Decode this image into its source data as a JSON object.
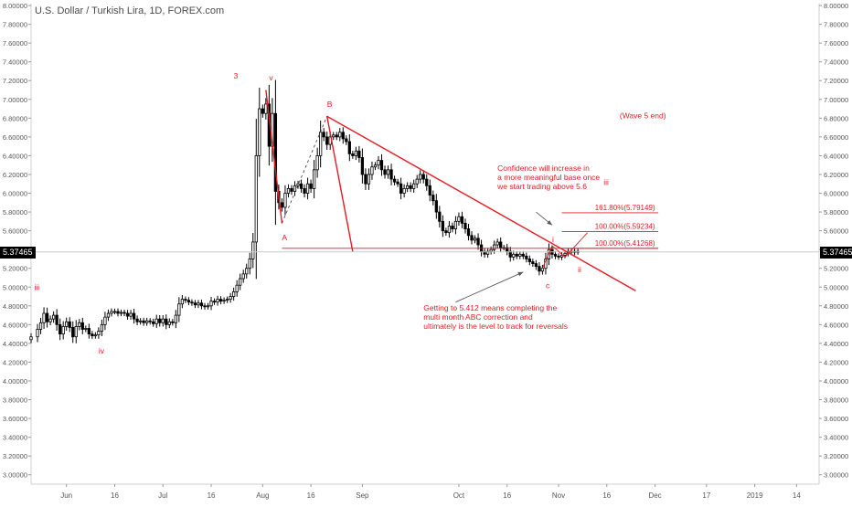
{
  "title": "U.S. Dollar / Turkish Lira, 1D, FOREX.com",
  "colors": {
    "annotation": "#e31b23",
    "candle_up": "#ffffff",
    "candle_down": "#000000",
    "wick": "#000000",
    "grid": "#e6e6e6",
    "axis_text": "#555555",
    "price_tag_bg": "#000000"
  },
  "chart_data": {
    "type": "candlestick",
    "title": "U.S. Dollar / Turkish Lira, 1D, FOREX.com",
    "ylim": [
      2.9,
      8.02
    ],
    "y_ticks": [
      "3.00000",
      "3.20000",
      "3.40000",
      "3.60000",
      "3.80000",
      "4.00000",
      "4.20000",
      "4.40000",
      "4.60000",
      "4.80000",
      "5.00000",
      "5.20000",
      "5.40000",
      "5.60000",
      "5.80000",
      "6.00000",
      "6.20000",
      "6.40000",
      "6.60000",
      "6.80000",
      "7.00000",
      "7.20000",
      "7.40000",
      "7.60000",
      "7.80000",
      "8.00000"
    ],
    "x_ticks": [
      {
        "label": "Jun",
        "day": 1
      },
      {
        "label": "16",
        "day": 16
      },
      {
        "label": "Jul",
        "day": 31
      },
      {
        "label": "16",
        "day": 46
      },
      {
        "label": "Aug",
        "day": 62
      },
      {
        "label": "16",
        "day": 77
      },
      {
        "label": "Sep",
        "day": 93
      },
      {
        "label": "Oct",
        "day": 123
      },
      {
        "label": "16",
        "day": 138
      },
      {
        "label": "Nov",
        "day": 154
      },
      {
        "label": "16",
        "day": 169
      },
      {
        "label": "Dec",
        "day": 184
      },
      {
        "label": "17",
        "day": 200
      },
      {
        "label": "2019",
        "day": 215
      },
      {
        "label": "14",
        "day": 228
      }
    ],
    "x_range_days": [
      -10,
      235
    ],
    "last_price": "5.37465",
    "last_price_value": 5.37465,
    "closes": [
      {
        "d": -10,
        "c": 4.47
      },
      {
        "d": -8,
        "c": 4.55
      },
      {
        "d": -7,
        "c": 4.62
      },
      {
        "d": -6,
        "c": 4.72
      },
      {
        "d": -5,
        "c": 4.63
      },
      {
        "d": -4,
        "c": 4.66
      },
      {
        "d": -3,
        "c": 4.7
      },
      {
        "d": -2,
        "c": 4.6
      },
      {
        "d": -1,
        "c": 4.5
      },
      {
        "d": 0,
        "c": 4.58
      },
      {
        "d": 1,
        "c": 4.63
      },
      {
        "d": 2,
        "c": 4.57
      },
      {
        "d": 3,
        "c": 4.47
      },
      {
        "d": 4,
        "c": 4.58
      },
      {
        "d": 5,
        "c": 4.62
      },
      {
        "d": 6,
        "c": 4.55
      },
      {
        "d": 7,
        "c": 4.56
      },
      {
        "d": 8,
        "c": 4.5
      },
      {
        "d": 9,
        "c": 4.48
      },
      {
        "d": 10,
        "c": 4.49
      },
      {
        "d": 11,
        "c": 4.53
      },
      {
        "d": 12,
        "c": 4.6
      },
      {
        "d": 13,
        "c": 4.68
      },
      {
        "d": 14,
        "c": 4.72
      },
      {
        "d": 15,
        "c": 4.74
      },
      {
        "d": 16,
        "c": 4.74
      },
      {
        "d": 17,
        "c": 4.72
      },
      {
        "d": 18,
        "c": 4.73
      },
      {
        "d": 19,
        "c": 4.72
      },
      {
        "d": 20,
        "c": 4.69
      },
      {
        "d": 21,
        "c": 4.72
      },
      {
        "d": 22,
        "c": 4.66
      },
      {
        "d": 23,
        "c": 4.63
      },
      {
        "d": 24,
        "c": 4.64
      },
      {
        "d": 25,
        "c": 4.62
      },
      {
        "d": 26,
        "c": 4.64
      },
      {
        "d": 27,
        "c": 4.63
      },
      {
        "d": 28,
        "c": 4.61
      },
      {
        "d": 29,
        "c": 4.66
      },
      {
        "d": 30,
        "c": 4.62
      },
      {
        "d": 31,
        "c": 4.66
      },
      {
        "d": 32,
        "c": 4.6
      },
      {
        "d": 33,
        "c": 4.63
      },
      {
        "d": 34,
        "c": 4.62
      },
      {
        "d": 35,
        "c": 4.7
      },
      {
        "d": 36,
        "c": 4.82
      },
      {
        "d": 37,
        "c": 4.87
      },
      {
        "d": 38,
        "c": 4.86
      },
      {
        "d": 39,
        "c": 4.84
      },
      {
        "d": 40,
        "c": 4.83
      },
      {
        "d": 41,
        "c": 4.81
      },
      {
        "d": 42,
        "c": 4.83
      },
      {
        "d": 43,
        "c": 4.8
      },
      {
        "d": 44,
        "c": 4.79
      },
      {
        "d": 45,
        "c": 4.8
      },
      {
        "d": 46,
        "c": 4.85
      },
      {
        "d": 47,
        "c": 4.84
      },
      {
        "d": 48,
        "c": 4.87
      },
      {
        "d": 49,
        "c": 4.85
      },
      {
        "d": 50,
        "c": 4.86
      },
      {
        "d": 51,
        "c": 4.87
      },
      {
        "d": 52,
        "c": 4.9
      },
      {
        "d": 53,
        "c": 4.95
      },
      {
        "d": 54,
        "c": 5.02
      },
      {
        "d": 55,
        "c": 5.09
      },
      {
        "d": 56,
        "c": 5.14
      },
      {
        "d": 57,
        "c": 5.2
      },
      {
        "d": 58,
        "c": 5.3
      },
      {
        "d": 59,
        "c": 5.48
      },
      {
        "d": 60,
        "c": 6.4
      },
      {
        "d": 61,
        "c": 6.9
      },
      {
        "d": 62,
        "c": 6.85
      },
      {
        "d": 63,
        "c": 6.95
      },
      {
        "d": 64,
        "c": 6.5
      },
      {
        "d": 65,
        "c": 6.85
      },
      {
        "d": 66,
        "c": 6.02
      },
      {
        "d": 67,
        "c": 5.9
      },
      {
        "d": 68,
        "c": 5.85
      },
      {
        "d": 69,
        "c": 6.0
      },
      {
        "d": 70,
        "c": 6.05
      },
      {
        "d": 71,
        "c": 6.02
      },
      {
        "d": 72,
        "c": 6.08
      },
      {
        "d": 73,
        "c": 6.1
      },
      {
        "d": 74,
        "c": 6.05
      },
      {
        "d": 75,
        "c": 6.0
      },
      {
        "d": 76,
        "c": 6.1
      },
      {
        "d": 77,
        "c": 6.05
      },
      {
        "d": 78,
        "c": 6.25
      },
      {
        "d": 79,
        "c": 6.4
      },
      {
        "d": 80,
        "c": 6.65
      },
      {
        "d": 81,
        "c": 6.6
      },
      {
        "d": 82,
        "c": 6.52
      },
      {
        "d": 83,
        "c": 6.6
      },
      {
        "d": 84,
        "c": 6.62
      },
      {
        "d": 85,
        "c": 6.6
      },
      {
        "d": 86,
        "c": 6.65
      },
      {
        "d": 87,
        "c": 6.58
      },
      {
        "d": 88,
        "c": 6.55
      },
      {
        "d": 89,
        "c": 6.42
      },
      {
        "d": 90,
        "c": 6.4
      },
      {
        "d": 91,
        "c": 6.45
      },
      {
        "d": 92,
        "c": 6.38
      },
      {
        "d": 93,
        "c": 6.2
      },
      {
        "d": 94,
        "c": 6.1
      },
      {
        "d": 95,
        "c": 6.2
      },
      {
        "d": 96,
        "c": 6.28
      },
      {
        "d": 97,
        "c": 6.3
      },
      {
        "d": 98,
        "c": 6.35
      },
      {
        "d": 99,
        "c": 6.25
      },
      {
        "d": 100,
        "c": 6.2
      },
      {
        "d": 101,
        "c": 6.25
      },
      {
        "d": 102,
        "c": 6.15
      },
      {
        "d": 103,
        "c": 6.12
      },
      {
        "d": 104,
        "c": 6.1
      },
      {
        "d": 105,
        "c": 6.0
      },
      {
        "d": 106,
        "c": 6.05
      },
      {
        "d": 107,
        "c": 6.08
      },
      {
        "d": 108,
        "c": 6.05
      },
      {
        "d": 109,
        "c": 6.1
      },
      {
        "d": 110,
        "c": 6.15
      },
      {
        "d": 111,
        "c": 6.2
      },
      {
        "d": 112,
        "c": 6.15
      },
      {
        "d": 113,
        "c": 6.08
      },
      {
        "d": 114,
        "c": 5.98
      },
      {
        "d": 115,
        "c": 5.92
      },
      {
        "d": 116,
        "c": 5.8
      },
      {
        "d": 117,
        "c": 5.7
      },
      {
        "d": 118,
        "c": 5.6
      },
      {
        "d": 119,
        "c": 5.58
      },
      {
        "d": 120,
        "c": 5.65
      },
      {
        "d": 121,
        "c": 5.62
      },
      {
        "d": 122,
        "c": 5.7
      },
      {
        "d": 123,
        "c": 5.75
      },
      {
        "d": 124,
        "c": 5.68
      },
      {
        "d": 125,
        "c": 5.62
      },
      {
        "d": 126,
        "c": 5.55
      },
      {
        "d": 127,
        "c": 5.5
      },
      {
        "d": 128,
        "c": 5.52
      },
      {
        "d": 129,
        "c": 5.45
      },
      {
        "d": 130,
        "c": 5.38
      },
      {
        "d": 131,
        "c": 5.35
      },
      {
        "d": 132,
        "c": 5.38
      },
      {
        "d": 133,
        "c": 5.4
      },
      {
        "d": 134,
        "c": 5.45
      },
      {
        "d": 135,
        "c": 5.48
      },
      {
        "d": 136,
        "c": 5.42
      },
      {
        "d": 137,
        "c": 5.42
      },
      {
        "d": 138,
        "c": 5.38
      },
      {
        "d": 139,
        "c": 5.32
      },
      {
        "d": 140,
        "c": 5.35
      },
      {
        "d": 141,
        "c": 5.33
      },
      {
        "d": 142,
        "c": 5.35
      },
      {
        "d": 143,
        "c": 5.33
      },
      {
        "d": 144,
        "c": 5.3
      },
      {
        "d": 145,
        "c": 5.27
      },
      {
        "d": 146,
        "c": 5.25
      },
      {
        "d": 147,
        "c": 5.22
      },
      {
        "d": 148,
        "c": 5.17
      },
      {
        "d": 149,
        "c": 5.2
      },
      {
        "d": 150,
        "c": 5.3
      },
      {
        "d": 151,
        "c": 5.4
      },
      {
        "d": 152,
        "c": 5.35
      },
      {
        "d": 153,
        "c": 5.33
      },
      {
        "d": 154,
        "c": 5.32
      },
      {
        "d": 155,
        "c": 5.34
      },
      {
        "d": 156,
        "c": 5.36
      },
      {
        "d": 157,
        "c": 5.38
      },
      {
        "d": 158,
        "c": 5.37
      },
      {
        "d": 159,
        "c": 5.38
      },
      {
        "d": 160,
        "c": 5.37465
      }
    ],
    "series_labels": {
      "wave_labels": [
        {
          "text": "iii",
          "d": -9,
          "v": 4.97
        },
        {
          "text": "iv",
          "d": 11,
          "v": 4.29
        },
        {
          "text": "3",
          "d": 53,
          "v": 7.22
        },
        {
          "text": "v",
          "d": 64,
          "v": 7.2
        },
        {
          "text": "A",
          "d": 68,
          "v": 5.5
        },
        {
          "text": "B",
          "d": 82,
          "v": 6.92
        },
        {
          "text": "i",
          "d": 152,
          "v": 5.48
        },
        {
          "text": "c",
          "d": 150,
          "v": 4.99
        },
        {
          "text": "ii",
          "d": 160,
          "v": 5.16
        },
        {
          "text": "iii",
          "d": 168,
          "v": 6.09
        },
        {
          "text": "(Wave 5 end)",
          "d": 173,
          "v": 6.8
        }
      ]
    },
    "fib_levels": [
      {
        "label": "161.80%(5.79149)",
        "value": 5.79149
      },
      {
        "label": "100.00%(5.59234)",
        "value": 5.59234
      },
      {
        "label": "100.00%(5.41268)",
        "value": 5.41268
      }
    ],
    "annotations": [
      {
        "lines": [
          "Confidence will increase in",
          "a more meaningful base once",
          "we start trading above 5.6"
        ],
        "d": 135,
        "v": 6.24
      },
      {
        "lines": [
          "Getting to 5.412 means completing the",
          "multi month ABC correction and",
          "ultimately is the level to track for reversals"
        ],
        "d": 112,
        "v": 4.75
      }
    ]
  }
}
